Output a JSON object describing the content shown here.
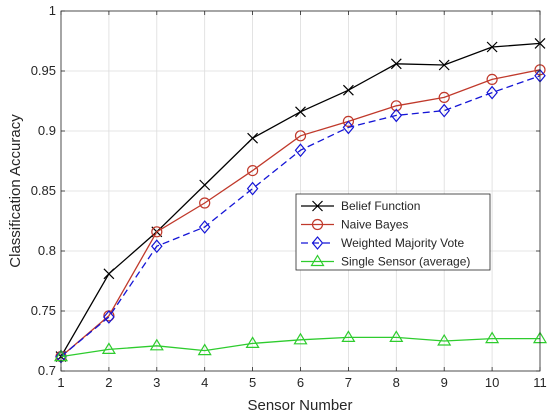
{
  "chart_data": {
    "type": "line",
    "xlabel": "Sensor Number",
    "ylabel": "Classification Accuracy",
    "x": [
      1,
      2,
      3,
      4,
      5,
      6,
      7,
      8,
      9,
      10,
      11
    ],
    "xlim": [
      1,
      11
    ],
    "ylim": [
      0.7,
      1.0
    ],
    "x_ticks": [
      "1",
      "2",
      "3",
      "4",
      "5",
      "6",
      "7",
      "8",
      "9",
      "10",
      "11"
    ],
    "y_ticks": [
      "0.7",
      "0.75",
      "0.8",
      "0.85",
      "0.9",
      "0.95",
      "1"
    ],
    "grid": true,
    "legend_position": "lower-right",
    "series": [
      {
        "name": "Belief Function",
        "color": "#000000",
        "marker": "x",
        "line_style": "solid",
        "values": [
          0.712,
          0.781,
          0.816,
          0.855,
          0.894,
          0.916,
          0.934,
          0.956,
          0.955,
          0.97,
          0.973
        ]
      },
      {
        "name": "Naive Bayes",
        "color": "#c0392b",
        "marker": "circle",
        "line_style": "solid",
        "values": [
          0.712,
          0.746,
          0.816,
          0.84,
          0.867,
          0.896,
          0.908,
          0.921,
          0.928,
          0.943,
          0.951
        ]
      },
      {
        "name": "Weighted Majority Vote",
        "color": "#1515d6",
        "marker": "diamond",
        "line_style": "dashed",
        "values": [
          0.712,
          0.745,
          0.804,
          0.82,
          0.852,
          0.884,
          0.903,
          0.913,
          0.917,
          0.932,
          0.946
        ]
      },
      {
        "name": "Single Sensor (average)",
        "color": "#2ecc2e",
        "marker": "triangle",
        "line_style": "solid",
        "values": [
          0.712,
          0.718,
          0.721,
          0.717,
          0.723,
          0.726,
          0.728,
          0.728,
          0.725,
          0.727,
          0.727
        ]
      }
    ]
  }
}
